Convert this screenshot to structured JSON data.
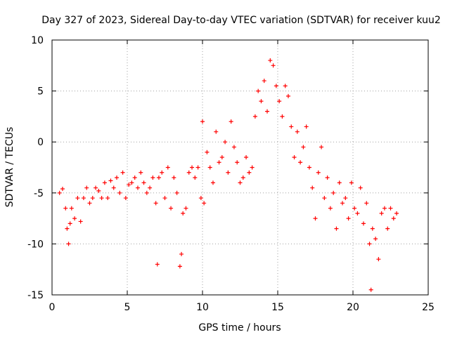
{
  "chart_data": {
    "type": "scatter",
    "title": "Day 327 of 2023, Sidereal Day-to-day VTEC variation (SDTVAR) for receiver kuu2",
    "xlabel": "GPS time / hours",
    "ylabel": "SDTVAR / TECUs",
    "xlim": [
      0,
      25
    ],
    "ylim": [
      -15,
      10
    ],
    "xticks": [
      0,
      5,
      10,
      15,
      20,
      25
    ],
    "yticks": [
      -15,
      -10,
      -5,
      0,
      5,
      10
    ],
    "xtick_labels": [
      "0",
      "5",
      "10",
      "15",
      "20",
      "25"
    ],
    "ytick_labels": [
      "-15",
      "-10",
      "-5",
      "0",
      "5",
      "10"
    ],
    "grid": true,
    "marker": "+",
    "color": "#ff0000",
    "series": [
      {
        "name": "SDTVAR",
        "x": [
          0.5,
          0.7,
          0.9,
          1.0,
          1.1,
          1.2,
          1.3,
          1.5,
          1.7,
          1.9,
          2.1,
          2.3,
          2.5,
          2.7,
          2.9,
          3.1,
          3.3,
          3.5,
          3.7,
          3.9,
          4.1,
          4.3,
          4.5,
          4.7,
          4.9,
          5.1,
          5.3,
          5.5,
          5.7,
          5.9,
          6.1,
          6.3,
          6.5,
          6.7,
          6.9,
          7.0,
          7.1,
          7.3,
          7.5,
          7.7,
          7.9,
          8.1,
          8.3,
          8.5,
          8.6,
          8.7,
          8.9,
          9.1,
          9.3,
          9.5,
          9.7,
          9.9,
          10.0,
          10.1,
          10.3,
          10.5,
          10.7,
          10.9,
          11.1,
          11.3,
          11.5,
          11.7,
          11.9,
          12.1,
          12.3,
          12.5,
          12.7,
          12.9,
          13.1,
          13.3,
          13.5,
          13.7,
          13.9,
          14.1,
          14.3,
          14.5,
          14.7,
          14.9,
          15.1,
          15.3,
          15.5,
          15.7,
          15.9,
          16.1,
          16.3,
          16.5,
          16.7,
          16.9,
          17.1,
          17.3,
          17.5,
          17.7,
          17.9,
          18.1,
          18.3,
          18.5,
          18.7,
          18.9,
          19.1,
          19.3,
          19.5,
          19.7,
          19.9,
          20.1,
          20.3,
          20.5,
          20.7,
          20.9,
          21.1,
          21.2,
          21.3,
          21.5,
          21.7,
          21.9,
          22.1,
          22.3,
          22.5,
          22.7,
          22.9
        ],
        "y": [
          -5.0,
          -4.6,
          -6.5,
          -8.5,
          -10.0,
          -8.0,
          -6.5,
          -7.5,
          -5.5,
          -7.8,
          -5.5,
          -4.5,
          -6.0,
          -5.5,
          -4.5,
          -4.8,
          -5.5,
          -4.0,
          -5.5,
          -3.8,
          -4.5,
          -3.5,
          -5.0,
          -3.0,
          -5.5,
          -4.2,
          -4.0,
          -3.5,
          -4.5,
          -3.0,
          -4.0,
          -5.0,
          -4.5,
          -3.5,
          -6.0,
          -12.0,
          -3.5,
          -3.0,
          -5.5,
          -2.5,
          -6.5,
          -3.5,
          -5.0,
          -12.2,
          -11.0,
          -7.0,
          -6.5,
          -3.0,
          -2.5,
          -3.5,
          -2.5,
          -5.5,
          2.0,
          -6.0,
          -1.0,
          -2.5,
          -4.0,
          1.0,
          -2.0,
          -1.5,
          0.0,
          -3.0,
          2.0,
          -0.5,
          -2.0,
          -4.0,
          -3.5,
          -1.5,
          -3.0,
          -2.5,
          2.5,
          5.0,
          4.0,
          6.0,
          3.0,
          8.0,
          7.5,
          5.5,
          4.0,
          2.5,
          5.5,
          4.5,
          1.5,
          -1.5,
          1.0,
          -2.0,
          -0.5,
          1.5,
          -2.5,
          -4.5,
          -7.5,
          -3.0,
          -0.5,
          -5.5,
          -3.5,
          -6.5,
          -5.0,
          -8.5,
          -4.0,
          -6.0,
          -5.5,
          -7.5,
          -4.0,
          -6.5,
          -7.0,
          -4.5,
          -8.0,
          -6.0,
          -10.0,
          -14.5,
          -8.5,
          -9.5,
          -11.5,
          -7.0,
          -6.5,
          -8.5,
          -6.5,
          -7.5,
          -7.0
        ]
      }
    ]
  }
}
